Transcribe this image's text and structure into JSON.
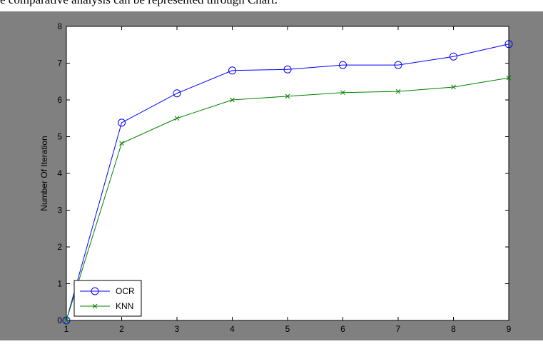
{
  "header_text": "e comparative analysis can be represented through Chart.",
  "chart_data": {
    "type": "line",
    "title": "",
    "xlabel": "",
    "ylabel": "Number Of Iteration",
    "xlim": [
      1,
      9
    ],
    "ylim": [
      0,
      8
    ],
    "x_ticks": [
      "1",
      "2",
      "3",
      "4",
      "5",
      "6",
      "7",
      "8",
      "9"
    ],
    "y_ticks": [
      "0",
      "1",
      "2",
      "3",
      "4",
      "5",
      "6",
      "7",
      "8"
    ],
    "grid": false,
    "legend_position": "bottom-left",
    "series": [
      {
        "name": "OCR",
        "color": "#0000ff",
        "marker": "circle",
        "x": [
          1,
          2,
          3,
          4,
          5,
          6,
          7,
          8,
          9
        ],
        "values": [
          0,
          5.38,
          6.18,
          6.8,
          6.83,
          6.95,
          6.95,
          7.18,
          7.52
        ]
      },
      {
        "name": "KNN",
        "color": "#008000",
        "marker": "x",
        "x": [
          1,
          2,
          3,
          4,
          5,
          6,
          7,
          8,
          9
        ],
        "values": [
          0,
          4.82,
          5.5,
          6.0,
          6.1,
          6.2,
          6.23,
          6.35,
          6.6
        ]
      }
    ],
    "background": "#808080",
    "plot_background": "#ffffff"
  }
}
